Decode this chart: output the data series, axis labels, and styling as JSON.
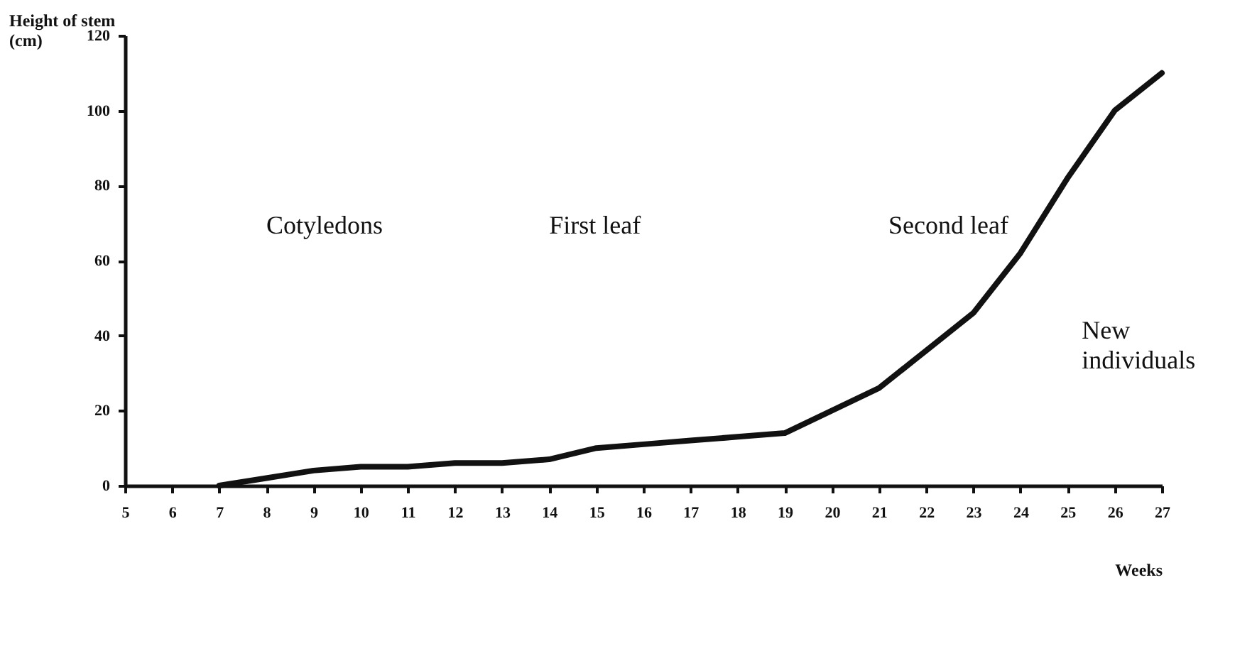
{
  "chart_data": {
    "type": "line",
    "ylabel": "Height of stem (cm)",
    "xlabel": "Weeks",
    "x": [
      7,
      8,
      9,
      10,
      11,
      12,
      13,
      14,
      15,
      16,
      17,
      18,
      19,
      20,
      21,
      22,
      23,
      24,
      25,
      26,
      27
    ],
    "series": [
      {
        "color": "#111111",
        "values": [
          0,
          2,
          4,
          5,
          5,
          6,
          6,
          7,
          10,
          11,
          12,
          13,
          14,
          20,
          26,
          36,
          46,
          62,
          82,
          100,
          110
        ]
      }
    ],
    "xlim": [
      5,
      27
    ],
    "xticks": [
      5,
      6,
      7,
      8,
      9,
      10,
      11,
      12,
      13,
      14,
      15,
      16,
      17,
      18,
      19,
      20,
      21,
      22,
      23,
      24,
      25,
      26,
      27
    ],
    "ylim": [
      0,
      120
    ],
    "yticks": [
      0,
      20,
      40,
      60,
      80,
      100,
      120
    ],
    "grid": false,
    "marker": "none",
    "line_style": "solid",
    "annotations": [
      "Cotyledons",
      "First leaf",
      "Second leaf",
      "New individuals"
    ]
  }
}
